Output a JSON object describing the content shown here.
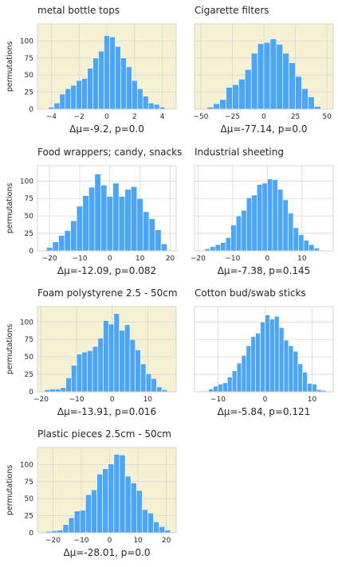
{
  "colors": {
    "bar": "#4ca6f5",
    "bar_edge": "#ffffff",
    "highlight_bg": "#f5f1d2",
    "plain_bg": "#ffffff",
    "grid": "#d7d7d7",
    "spine": "#cccccc",
    "text": "#262626"
  },
  "chart_data": [
    {
      "type": "bar",
      "title": "metal bottle tops",
      "xlabel": "Δμ=-9.2, p=0.0",
      "ylabel": "permutations",
      "highlighted": true,
      "xlim": [
        -5.0,
        5.0
      ],
      "ylim": [
        0,
        125
      ],
      "xticks": [
        -4,
        -2,
        0,
        2,
        4
      ],
      "yticks": [
        0,
        25,
        50,
        75,
        100
      ],
      "bin_edges": [
        -4.6,
        -4.2,
        -3.8,
        -3.4,
        -3.0,
        -2.6,
        -2.2,
        -1.8,
        -1.4,
        -1.0,
        -0.6,
        -0.2,
        0.2,
        0.6,
        1.0,
        1.4,
        1.8,
        2.2,
        2.6,
        3.0,
        3.4,
        3.8,
        4.2
      ],
      "values": [
        1,
        3,
        9,
        22,
        30,
        35,
        42,
        45,
        60,
        75,
        85,
        108,
        106,
        92,
        75,
        62,
        42,
        30,
        19,
        9,
        7,
        3
      ]
    },
    {
      "type": "bar",
      "title": "Cigarette filters",
      "xlabel": "Δμ=-77.14, p=0.0",
      "ylabel": "",
      "highlighted": true,
      "xlim": [
        -55,
        55
      ],
      "ylim": [
        0,
        125
      ],
      "xticks": [
        -50,
        -25,
        0,
        25,
        50
      ],
      "yticks": [
        0,
        25,
        50,
        75,
        100
      ],
      "bin_edges": [
        -45,
        -40,
        -35,
        -30,
        -25,
        -20,
        -15,
        -10,
        -5,
        0,
        5,
        10,
        15,
        20,
        25,
        30,
        35,
        40,
        45
      ],
      "values": [
        3,
        8,
        14,
        32,
        36,
        44,
        58,
        82,
        96,
        98,
        103,
        95,
        82,
        68,
        48,
        30,
        18,
        4
      ]
    },
    {
      "type": "bar",
      "title": "Food wrappers; candy, snacks",
      "xlabel": "Δμ=-12.09, p=0.082",
      "ylabel": "permutations",
      "highlighted": false,
      "xlim": [
        -24,
        22
      ],
      "ylim": [
        0,
        122
      ],
      "xticks": [
        -20,
        -10,
        0,
        10,
        20
      ],
      "yticks": [
        0,
        25,
        50,
        75,
        100
      ],
      "bin_edges": [
        -21,
        -19,
        -17,
        -15,
        -13,
        -11,
        -9,
        -7,
        -5,
        -3,
        -1,
        1,
        3,
        5,
        7,
        9,
        11,
        13,
        15,
        17,
        19
      ],
      "values": [
        5,
        13,
        22,
        29,
        43,
        64,
        79,
        91,
        110,
        94,
        78,
        97,
        78,
        88,
        92,
        75,
        56,
        46,
        30,
        10
      ]
    },
    {
      "type": "bar",
      "title": "Industrial sheeting",
      "xlabel": "Δμ=-7.38, p=0.145",
      "ylabel": "",
      "highlighted": false,
      "xlim": [
        -21,
        19
      ],
      "ylim": [
        0,
        122
      ],
      "xticks": [
        -20,
        -10,
        0,
        10
      ],
      "yticks": [
        0,
        25,
        50,
        75,
        100
      ],
      "bin_edges": [
        -18,
        -16.5,
        -15,
        -13.5,
        -12,
        -10.5,
        -9,
        -7.5,
        -6,
        -4.5,
        -3,
        -1.5,
        0,
        1.5,
        3,
        4.5,
        6,
        7.5,
        9,
        10.5,
        12,
        13.5,
        15,
        16.5
      ],
      "values": [
        3,
        6,
        9,
        12,
        19,
        37,
        50,
        58,
        76,
        80,
        95,
        97,
        103,
        102,
        88,
        73,
        54,
        33,
        23,
        15,
        9,
        4,
        1
      ]
    },
    {
      "type": "bar",
      "title": "Foam polystyrene  2.5 - 50cm",
      "xlabel": "Δμ=-13.91, p=0.016",
      "ylabel": "permutations",
      "highlighted": true,
      "xlim": [
        -21,
        18
      ],
      "ylim": [
        0,
        122
      ],
      "xticks": [
        -20,
        -10,
        0,
        10
      ],
      "yticks": [
        0,
        25,
        50,
        75,
        100
      ],
      "bin_edges": [
        -19,
        -17.5,
        -16,
        -14.5,
        -13,
        -11.5,
        -10,
        -8.5,
        -7,
        -5.5,
        -4,
        -2.5,
        -1,
        0.5,
        2,
        3.5,
        5,
        6.5,
        8,
        9.5,
        11,
        12.5,
        14,
        15.5
      ],
      "values": [
        3,
        4,
        4,
        6,
        20,
        38,
        54,
        57,
        59,
        65,
        77,
        102,
        97,
        112,
        88,
        96,
        75,
        60,
        40,
        26,
        19,
        7,
        3
      ]
    },
    {
      "type": "bar",
      "title": "Cotton bud/swab sticks",
      "xlabel": "Δμ=-5.84, p=0.121",
      "ylabel": "",
      "highlighted": false,
      "xlim": [
        -15,
        14.5
      ],
      "ylim": [
        0,
        122
      ],
      "xticks": [
        -10,
        0,
        10
      ],
      "yticks": [
        0,
        25,
        50,
        75,
        100
      ],
      "bin_edges": [
        -13,
        -12,
        -11,
        -10,
        -9,
        -8,
        -7,
        -6,
        -5,
        -4,
        -3,
        -2,
        -1,
        0,
        1,
        2,
        3,
        4,
        5,
        6,
        7,
        8,
        9,
        10,
        11,
        12,
        13
      ],
      "values": [
        1,
        4,
        8,
        11,
        13,
        21,
        30,
        41,
        52,
        66,
        79,
        84,
        100,
        110,
        104,
        108,
        92,
        74,
        66,
        58,
        40,
        28,
        12,
        11,
        3,
        2
      ]
    },
    {
      "type": "bar",
      "title": "Plastic pieces 2.5cm - 50cm",
      "xlabel": "Δμ=-28.01, p=0.0",
      "ylabel": "permutations",
      "highlighted": true,
      "xlim": [
        -25.5,
        23.5
      ],
      "ylim": [
        0,
        125
      ],
      "xticks": [
        -20,
        -10,
        0,
        10,
        20
      ],
      "yticks": [
        0,
        25,
        50,
        75,
        100
      ],
      "bin_edges": [
        -22.5,
        -20.5,
        -18.5,
        -16.5,
        -14.5,
        -12.5,
        -10.5,
        -8.5,
        -6.5,
        -4.5,
        -2.5,
        -0.5,
        1.5,
        3.5,
        5.5,
        7.5,
        9.5,
        11.5,
        13.5,
        15.5,
        17.5,
        19.5,
        21.5
      ],
      "values": [
        2,
        3,
        4,
        12,
        22,
        32,
        33,
        56,
        63,
        86,
        94,
        101,
        115,
        114,
        83,
        73,
        62,
        34,
        29,
        16,
        9,
        4
      ]
    }
  ]
}
